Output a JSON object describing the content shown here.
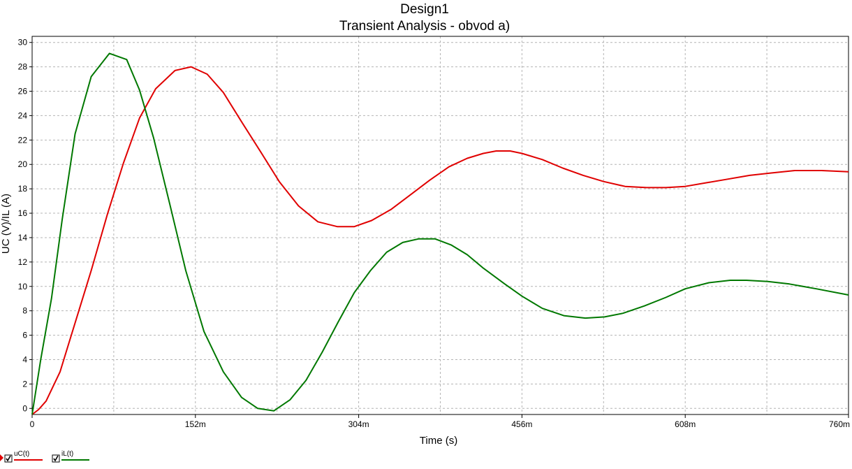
{
  "chart_data": {
    "type": "line",
    "title": "Design1",
    "subtitle": "Transient Analysis - obvod a)",
    "xlabel": "Time (s)",
    "ylabel": "UC (V)/IL (A)",
    "xlim": [
      0,
      0.76
    ],
    "ylim": [
      -0.5,
      30.5
    ],
    "x_ticks": [
      0,
      0.152,
      0.304,
      0.456,
      0.608,
      0.76
    ],
    "x_tick_labels": [
      "0",
      "152m",
      "304m",
      "456m",
      "608m",
      "760m"
    ],
    "y_ticks": [
      0,
      2,
      4,
      6,
      8,
      10,
      12,
      14,
      16,
      18,
      20,
      22,
      24,
      26,
      28,
      30
    ],
    "y_tick_labels": [
      "0",
      "2",
      "4",
      "6",
      "8",
      "10",
      "12",
      "14",
      "16",
      "18",
      "20",
      "22",
      "24",
      "26",
      "28",
      "30"
    ],
    "grid": true,
    "series": [
      {
        "name": "uC(t)",
        "color": "#e00000",
        "x": [
          0,
          0.006,
          0.013,
          0.026,
          0.04,
          0.055,
          0.07,
          0.085,
          0.1,
          0.115,
          0.133,
          0.148,
          0.163,
          0.178,
          0.195,
          0.213,
          0.23,
          0.248,
          0.266,
          0.284,
          0.3,
          0.316,
          0.334,
          0.352,
          0.37,
          0.388,
          0.405,
          0.42,
          0.432,
          0.445,
          0.456,
          0.475,
          0.494,
          0.513,
          0.532,
          0.552,
          0.572,
          0.59,
          0.608,
          0.628,
          0.648,
          0.668,
          0.688,
          0.71,
          0.735,
          0.76
        ],
        "values": [
          -0.5,
          -0.1,
          0.6,
          3.0,
          7.0,
          11.3,
          15.9,
          20.1,
          23.8,
          26.2,
          27.7,
          28.0,
          27.4,
          25.9,
          23.5,
          21.0,
          18.6,
          16.6,
          15.3,
          14.9,
          14.9,
          15.4,
          16.3,
          17.5,
          18.7,
          19.8,
          20.5,
          20.9,
          21.1,
          21.1,
          20.9,
          20.4,
          19.7,
          19.1,
          18.6,
          18.2,
          18.1,
          18.1,
          18.2,
          18.5,
          18.8,
          19.1,
          19.3,
          19.5,
          19.5,
          19.4
        ]
      },
      {
        "name": "iL(t)",
        "color": "#007800",
        "x": [
          0,
          0.008,
          0.018,
          0.028,
          0.04,
          0.055,
          0.072,
          0.088,
          0.1,
          0.113,
          0.128,
          0.143,
          0.16,
          0.178,
          0.195,
          0.21,
          0.225,
          0.24,
          0.255,
          0.27,
          0.285,
          0.3,
          0.315,
          0.33,
          0.345,
          0.36,
          0.375,
          0.39,
          0.405,
          0.42,
          0.44,
          0.456,
          0.475,
          0.495,
          0.515,
          0.533,
          0.55,
          0.57,
          0.59,
          0.608,
          0.63,
          0.65,
          0.665,
          0.685,
          0.705,
          0.73,
          0.76
        ],
        "values": [
          -0.5,
          4.0,
          9.0,
          15.5,
          22.5,
          27.2,
          29.1,
          28.6,
          26.1,
          22.2,
          16.8,
          11.3,
          6.3,
          3.0,
          0.9,
          0.0,
          -0.2,
          0.7,
          2.3,
          4.6,
          7.1,
          9.5,
          11.3,
          12.8,
          13.6,
          13.9,
          13.9,
          13.4,
          12.6,
          11.5,
          10.2,
          9.2,
          8.2,
          7.6,
          7.4,
          7.5,
          7.8,
          8.4,
          9.1,
          9.8,
          10.3,
          10.5,
          10.5,
          10.4,
          10.2,
          9.8,
          9.3
        ]
      }
    ]
  }
}
